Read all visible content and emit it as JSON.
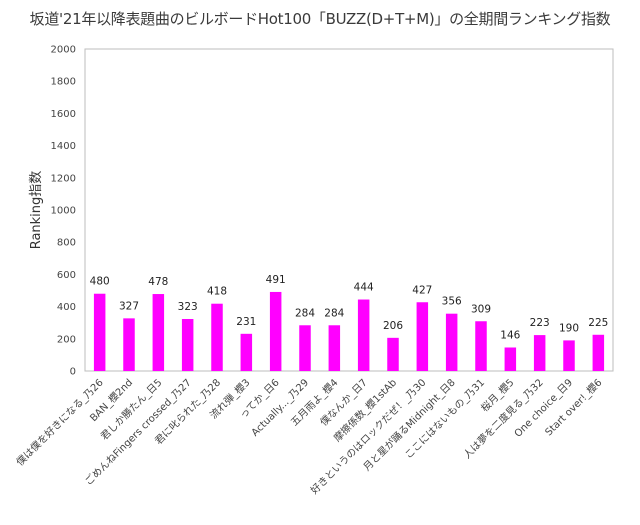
{
  "chart_data": {
    "type": "bar",
    "title": "坂道'21年以降表題曲のビルボードHot100「BUZZ(D+T+M)」の全期間ランキング指数",
    "xlabel": "",
    "ylabel": "Ranking指数",
    "ylim": [
      0,
      2000
    ],
    "yticks": [
      0,
      200,
      400,
      600,
      800,
      1000,
      1200,
      1400,
      1600,
      1800,
      2000
    ],
    "grid": false,
    "bar_color": "#ff00ff",
    "categories": [
      "僕は僕を好きになる_乃26",
      "BAN_櫻2nd",
      "君しか勝たん_日5",
      "ごめんねFingers crossed_乃27",
      "君に叱られた_乃28",
      "流れ弾_櫻3",
      "ってか_日6",
      "Actually..._乃29",
      "五月雨よ_櫻4",
      "僕なんか_日7",
      "摩擦係数_櫻1stAb",
      "好きというのはロックだぜ！_乃30",
      "月と星が踊るMidnight_日8",
      "ここにはないもの_乃31",
      "桜月_櫻5",
      "人は夢を二度見る_乃32",
      "One choice_日9",
      "Start over!_櫻6"
    ],
    "values": [
      480,
      327,
      478,
      323,
      418,
      231,
      491,
      284,
      284,
      444,
      206,
      427,
      356,
      309,
      146,
      223,
      190,
      225
    ]
  }
}
